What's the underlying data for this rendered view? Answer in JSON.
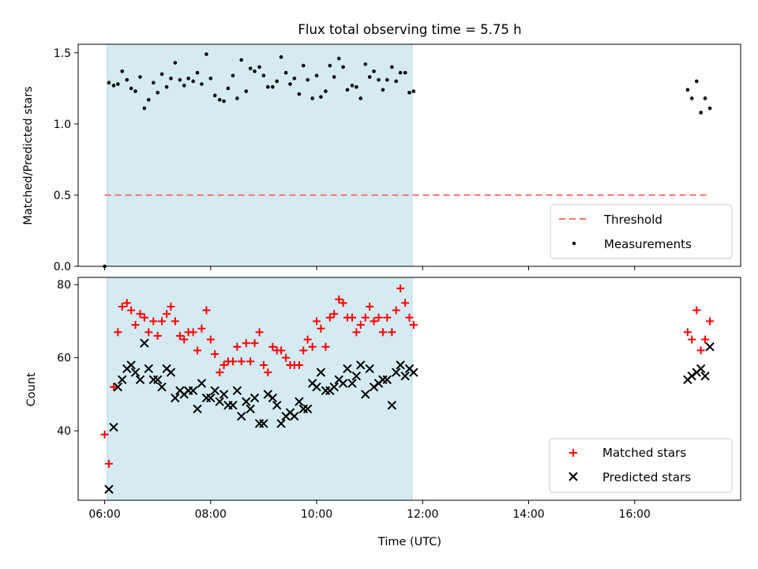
{
  "figure_title": "Flux total observing time = 5.75 h",
  "colors": {
    "threshold": "#ff7070",
    "measurement": "#000000",
    "matched": "#ff0000",
    "predicted": "#000000",
    "span": "#add8e6"
  },
  "chart_data": [
    {
      "type": "scatter",
      "title": "Flux total observing time = 5.75 h",
      "xlabel": "",
      "ylabel": "Matched/Predicted stars",
      "xlim": [
        5.5,
        18.0
      ],
      "ylim": [
        0,
        1.56
      ],
      "yticks": [
        0.0,
        0.5,
        1.0,
        1.5
      ],
      "ytick_labels": [
        "0.0",
        "0.5",
        "1.0",
        "1.5"
      ],
      "highlight_span": [
        6.05,
        11.8
      ],
      "threshold": {
        "name": "Threshold",
        "y": 0.5,
        "x": [
          6.0,
          17.4
        ]
      },
      "legend": [
        "Threshold",
        "Measurements"
      ],
      "legend_position": "lower-right",
      "series": [
        {
          "name": "Measurements",
          "x": [
            6.0,
            6.08,
            6.17,
            6.25,
            6.33,
            6.42,
            6.5,
            6.58,
            6.67,
            6.75,
            6.83,
            6.92,
            7.0,
            7.08,
            7.17,
            7.25,
            7.33,
            7.42,
            7.5,
            7.58,
            7.67,
            7.75,
            7.83,
            7.92,
            8.0,
            8.08,
            8.17,
            8.25,
            8.33,
            8.42,
            8.5,
            8.58,
            8.67,
            8.75,
            8.83,
            8.92,
            9.0,
            9.08,
            9.17,
            9.25,
            9.33,
            9.42,
            9.5,
            9.58,
            9.67,
            9.75,
            9.83,
            9.92,
            10.0,
            10.08,
            10.17,
            10.25,
            10.33,
            10.42,
            10.5,
            10.58,
            10.67,
            10.75,
            10.83,
            10.92,
            11.0,
            11.08,
            11.17,
            11.25,
            11.33,
            11.42,
            11.5,
            11.58,
            11.67,
            11.75,
            11.83,
            17.0,
            17.08,
            17.17,
            17.25,
            17.33,
            17.42
          ],
          "y": [
            0.0,
            1.29,
            1.27,
            1.28,
            1.37,
            1.31,
            1.25,
            1.23,
            1.33,
            1.11,
            1.17,
            1.29,
            1.22,
            1.35,
            1.26,
            1.32,
            1.43,
            1.31,
            1.27,
            1.32,
            1.3,
            1.36,
            1.28,
            1.49,
            1.32,
            1.2,
            1.17,
            1.16,
            1.25,
            1.34,
            1.18,
            1.45,
            1.23,
            1.39,
            1.37,
            1.4,
            1.34,
            1.26,
            1.26,
            1.3,
            1.47,
            1.36,
            1.28,
            1.32,
            1.21,
            1.41,
            1.31,
            1.18,
            1.34,
            1.19,
            1.23,
            1.41,
            1.33,
            1.46,
            1.4,
            1.24,
            1.27,
            1.26,
            1.18,
            1.42,
            1.33,
            1.37,
            1.31,
            1.24,
            1.31,
            1.4,
            1.3,
            1.36,
            1.36,
            1.22,
            1.23,
            1.24,
            1.18,
            1.3,
            1.08,
            1.18,
            1.11
          ]
        }
      ]
    },
    {
      "type": "scatter",
      "title": "",
      "xlabel": "Time (UTC)",
      "ylabel": "Count",
      "xlim": [
        5.5,
        18.0
      ],
      "ylim": [
        21,
        82
      ],
      "yticks": [
        40,
        60,
        80
      ],
      "ytick_labels": [
        "40",
        "60",
        "80"
      ],
      "xticks": [
        6,
        8,
        10,
        12,
        14,
        16
      ],
      "xtick_labels": [
        "06:00",
        "08:00",
        "10:00",
        "12:00",
        "14:00",
        "16:00"
      ],
      "highlight_span": [
        6.05,
        11.8
      ],
      "legend": [
        "Matched stars",
        "Predicted stars"
      ],
      "legend_position": "lower-right",
      "series": [
        {
          "name": "Matched stars",
          "x": [
            6.0,
            6.08,
            6.17,
            6.25,
            6.33,
            6.42,
            6.5,
            6.58,
            6.67,
            6.75,
            6.83,
            6.92,
            7.0,
            7.08,
            7.17,
            7.25,
            7.33,
            7.42,
            7.5,
            7.58,
            7.67,
            7.75,
            7.83,
            7.92,
            8.0,
            8.08,
            8.17,
            8.25,
            8.33,
            8.42,
            8.5,
            8.58,
            8.67,
            8.75,
            8.83,
            8.92,
            9.0,
            9.08,
            9.17,
            9.25,
            9.33,
            9.42,
            9.5,
            9.58,
            9.67,
            9.75,
            9.83,
            9.92,
            10.0,
            10.08,
            10.17,
            10.25,
            10.33,
            10.42,
            10.5,
            10.58,
            10.67,
            10.75,
            10.83,
            10.92,
            11.0,
            11.08,
            11.17,
            11.25,
            11.33,
            11.42,
            11.5,
            11.58,
            11.67,
            11.75,
            11.83,
            17.0,
            17.08,
            17.17,
            17.25,
            17.33,
            17.42
          ],
          "y": [
            39,
            31,
            52,
            67,
            74,
            75,
            73,
            69,
            72,
            71,
            67,
            70,
            66,
            70,
            72,
            74,
            70,
            66,
            65,
            67,
            67,
            62,
            68,
            73,
            65,
            61,
            56,
            58,
            59,
            59,
            63,
            59,
            64,
            59,
            64,
            67,
            58,
            56,
            63,
            62,
            62,
            60,
            58,
            58,
            58,
            62,
            65,
            63,
            70,
            68,
            63,
            71,
            72,
            76,
            75,
            71,
            71,
            67,
            69,
            71,
            74,
            70,
            71,
            67,
            71,
            67,
            73,
            79,
            75,
            71,
            69,
            67,
            65,
            73,
            62,
            65,
            70
          ]
        },
        {
          "name": "Predicted stars",
          "x": [
            6.08,
            6.17,
            6.25,
            6.33,
            6.42,
            6.5,
            6.58,
            6.67,
            6.75,
            6.83,
            6.92,
            7.0,
            7.08,
            7.17,
            7.25,
            7.33,
            7.42,
            7.5,
            7.58,
            7.67,
            7.75,
            7.83,
            7.92,
            8.0,
            8.08,
            8.17,
            8.25,
            8.33,
            8.42,
            8.5,
            8.58,
            8.67,
            8.75,
            8.83,
            8.92,
            9.0,
            9.08,
            9.17,
            9.25,
            9.33,
            9.42,
            9.5,
            9.58,
            9.67,
            9.75,
            9.83,
            9.92,
            10.0,
            10.08,
            10.17,
            10.25,
            10.33,
            10.42,
            10.5,
            10.58,
            10.67,
            10.75,
            10.83,
            10.92,
            11.0,
            11.08,
            11.17,
            11.25,
            11.33,
            11.42,
            11.5,
            11.58,
            11.67,
            11.75,
            11.83,
            17.0,
            17.08,
            17.17,
            17.25,
            17.33,
            17.42
          ],
          "y": [
            24,
            41,
            52,
            54,
            57,
            58,
            56,
            54,
            64,
            57,
            54,
            54,
            52,
            57,
            56,
            49,
            51,
            50,
            51,
            51,
            46,
            53,
            49,
            49,
            51,
            48,
            50,
            47,
            47,
            51,
            44,
            48,
            46,
            49,
            42,
            42,
            50,
            49,
            47,
            42,
            44,
            45,
            44,
            48,
            46,
            46,
            53,
            52,
            56,
            51,
            51,
            52,
            54,
            53,
            57,
            53,
            55,
            58,
            50,
            57,
            52,
            53,
            54,
            54,
            47,
            56,
            58,
            55,
            57,
            56,
            54,
            55,
            56,
            57,
            55,
            63
          ]
        }
      ]
    }
  ]
}
